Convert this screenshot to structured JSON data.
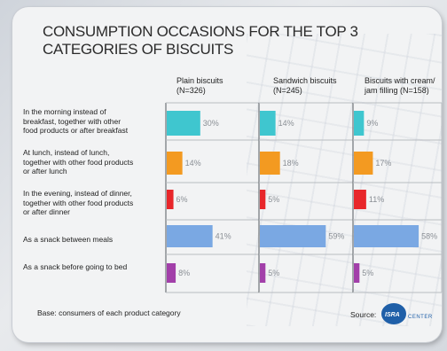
{
  "title": "CONSUMPTION OCCASIONS FOR THE TOP 3 CATEGORIES OF BISCUITS",
  "footnote": "Base: consumers of each product category",
  "source_label": "Source:",
  "logo_text": "ISRA CENTER",
  "colors": {
    "cyan": "#3fc6cf",
    "orange": "#f39a21",
    "red": "#e8262a",
    "blue": "#7aa8e3",
    "purple": "#a23fa9"
  },
  "chart_data": {
    "type": "bar",
    "orientation": "horizontal",
    "categories": [
      "In the morning instead of breakfast, together with other food products or after breakfast",
      "At lunch, instead of lunch, together with other food products or after lunch",
      "In the evening, instead of dinner, together with other food products or after dinner",
      "As a snack between meals",
      "As a snack before going to bed"
    ],
    "category_colors": [
      "cyan",
      "orange",
      "red",
      "blue",
      "purple"
    ],
    "series": [
      {
        "name": "Plain biscuits (N=326)",
        "values": [
          30,
          14,
          6,
          41,
          8
        ],
        "labels": [
          "30%",
          "14%",
          "6%",
          "41%",
          "8%"
        ]
      },
      {
        "name": "Sandwich biscuits (N=245)",
        "values": [
          14,
          18,
          5,
          59,
          5
        ],
        "labels": [
          "14%",
          "18%",
          "5%",
          "59%",
          "5%"
        ]
      },
      {
        "name": "Biscuits with cream/ jam filling (N=158)",
        "values": [
          9,
          17,
          11,
          58,
          5
        ],
        "labels": [
          "9%",
          "17%",
          "11%",
          "58%",
          "5%"
        ]
      }
    ],
    "grid": true
  },
  "column_headers": [
    {
      "line1": "Plain biscuits",
      "line2": "(N=326)"
    },
    {
      "line1": "Sandwich biscuits",
      "line2": "(N=245)"
    },
    {
      "line1": "Biscuits with cream/",
      "line2": "jam filling (N=158)"
    }
  ],
  "row_labels": [
    [
      "In the morning instead of",
      "breakfast, together with other",
      "food products or after breakfast"
    ],
    [
      "At lunch, instead of lunch,",
      "together with other food products",
      "or after lunch"
    ],
    [
      "In the evening, instead of dinner,",
      "together with other food products",
      "or after dinner"
    ],
    [
      "As a snack between meals"
    ],
    [
      "As a snack before going to bed"
    ]
  ]
}
